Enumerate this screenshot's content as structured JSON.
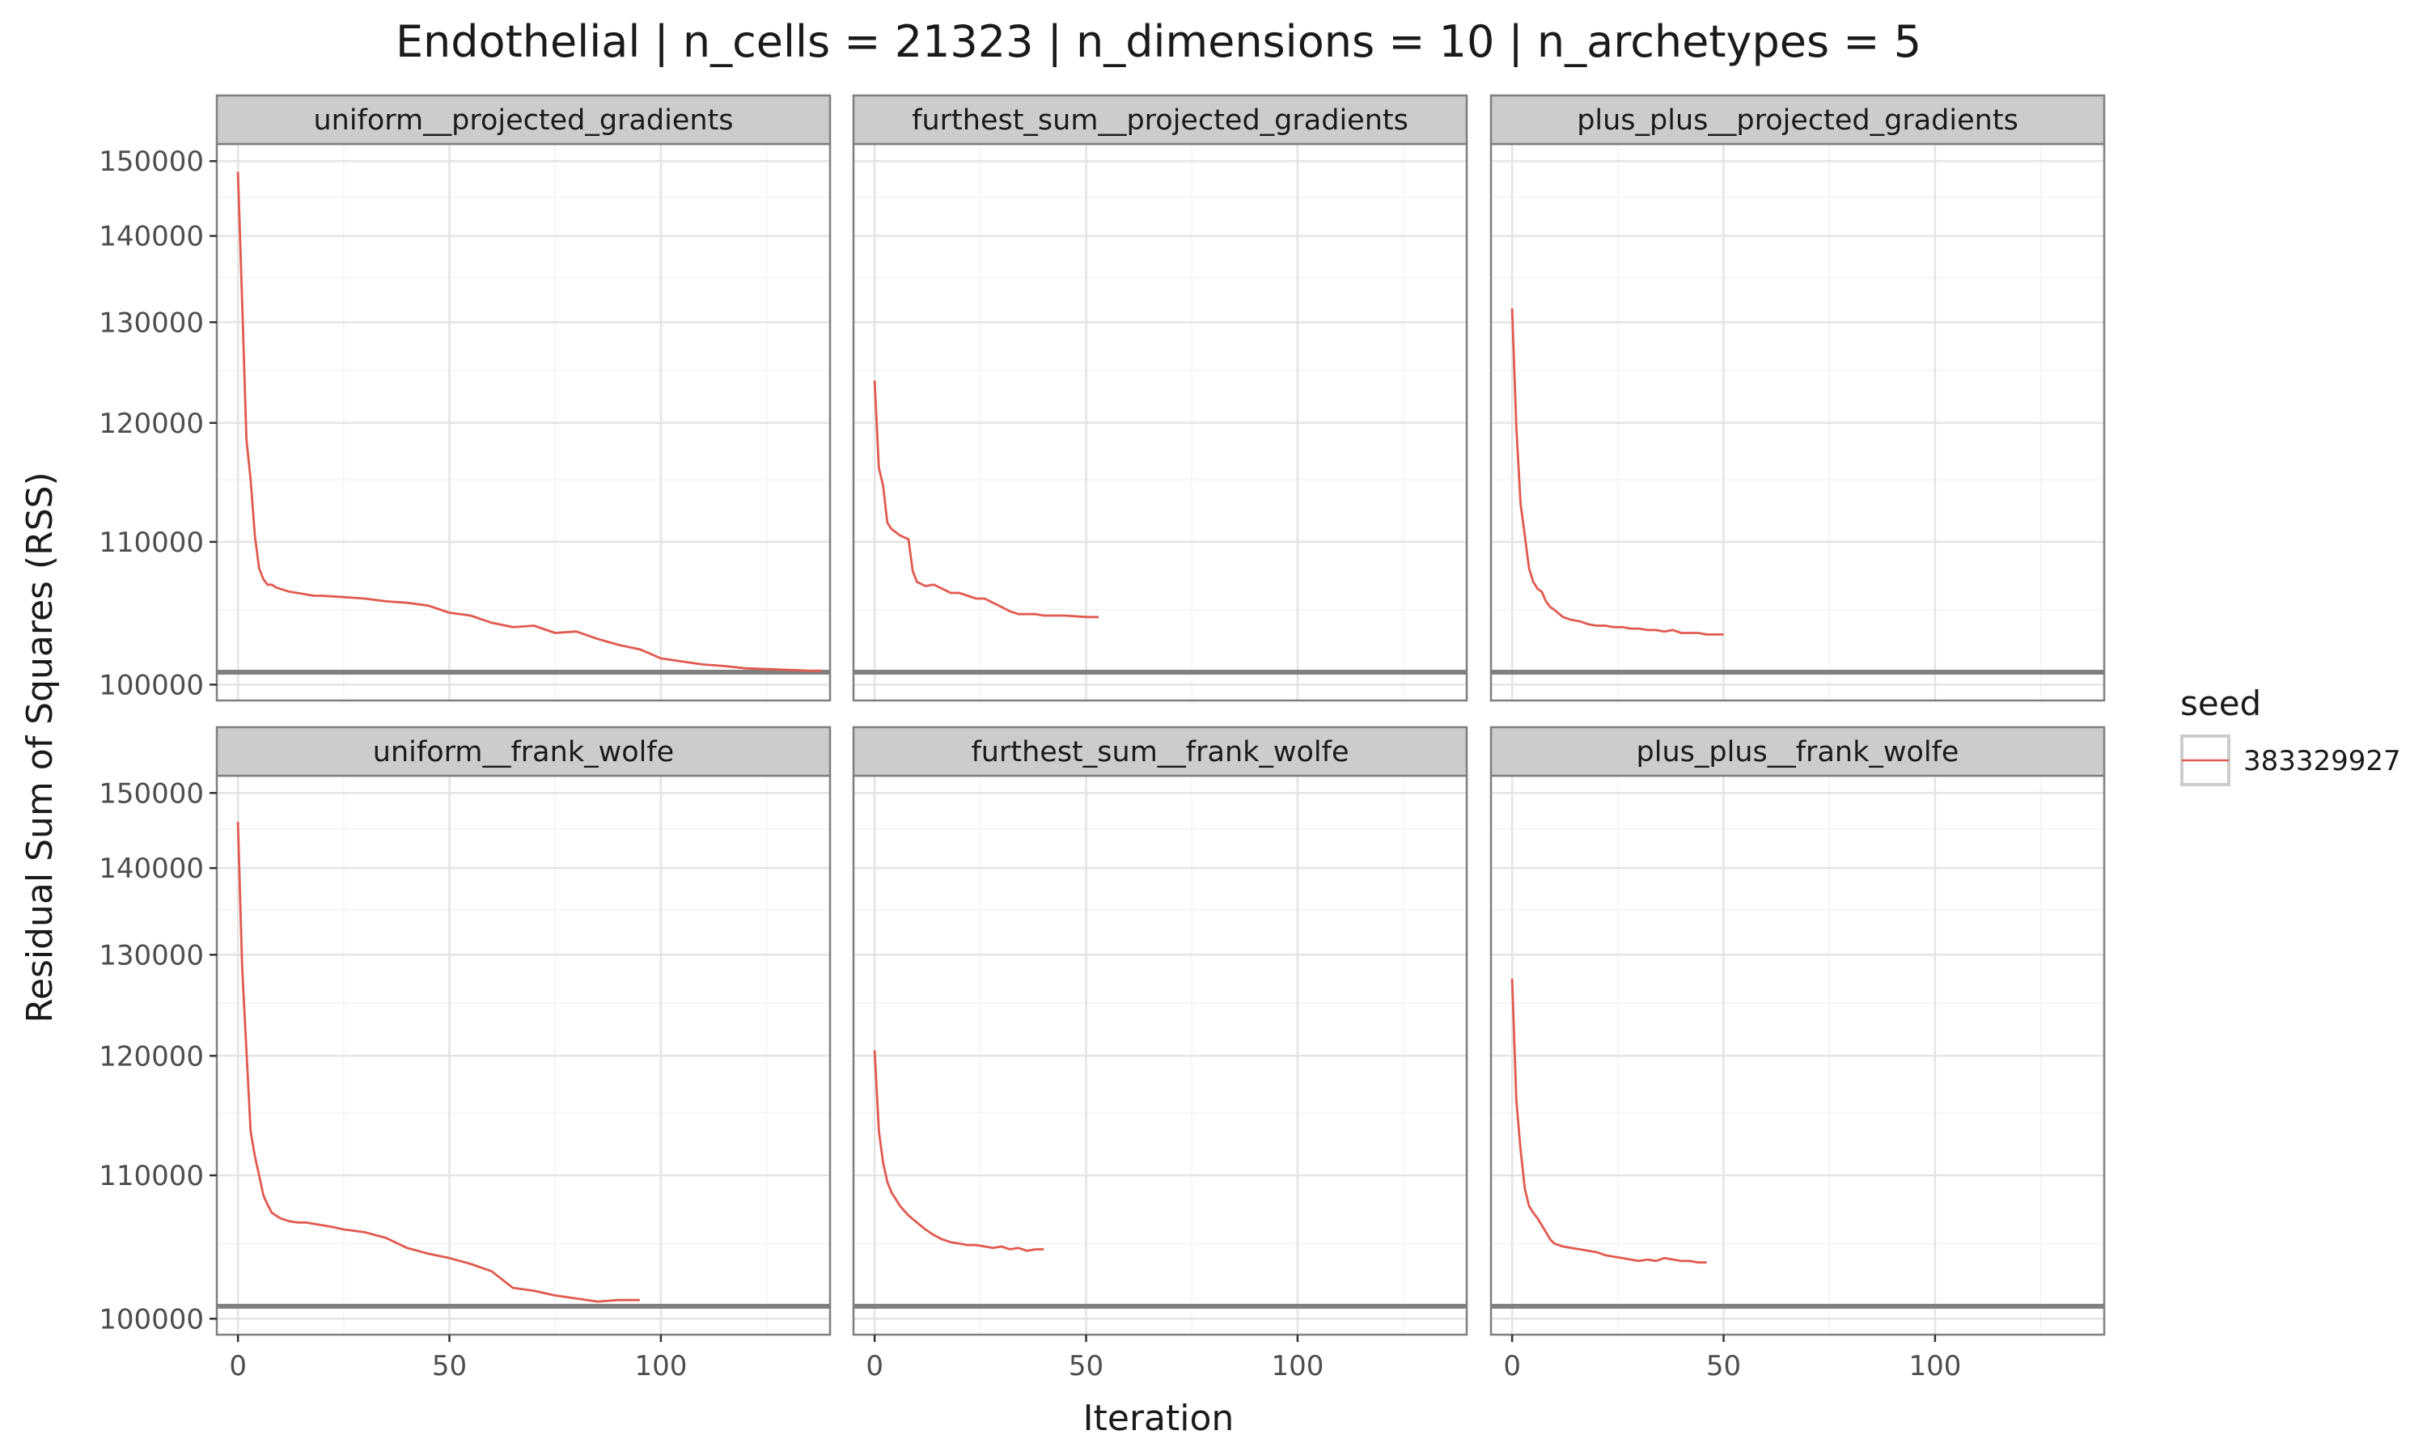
{
  "chart_data": {
    "type": "line",
    "title": "Endothelial | n_cells = 21323 | n_dimensions = 10 | n_archetypes = 5",
    "xlabel": "Iteration",
    "ylabel": "Residual Sum of Squares (RSS)",
    "xlim": [
      -5,
      140
    ],
    "ylim": [
      99000,
      152500
    ],
    "y_scale": "reciprocal",
    "x_ticks": [
      0,
      50,
      100
    ],
    "x_tick_labels": [
      "0",
      "50",
      "100"
    ],
    "y_ticks": [
      100000,
      110000,
      120000,
      130000,
      140000,
      150000
    ],
    "y_tick_labels": [
      "100000",
      "110000",
      "120000",
      "130000",
      "140000",
      "150000"
    ],
    "grid": true,
    "reference_line_y": 100800,
    "legend": {
      "title": "seed",
      "position": "right",
      "entries": [
        "383329927"
      ]
    },
    "colors": {
      "series": "#e05a4f",
      "strip_bg": "#cccccc",
      "panel_border": "#7f7f7f",
      "hline": "#808080",
      "grid_major": "#e4e4e4",
      "grid_minor": "#f3f3f3"
    },
    "panels": [
      {
        "label": "uniform__projected_gradients",
        "series": [
          {
            "name": "383329927",
            "x": [
              0,
              1,
              2,
              3,
              4,
              5,
              6,
              7,
              8,
              9,
              10,
              12,
              14,
              16,
              18,
              20,
              25,
              30,
              35,
              40,
              45,
              50,
              55,
              60,
              65,
              70,
              75,
              80,
              85,
              90,
              95,
              100,
              105,
              110,
              115,
              120,
              125,
              130,
              135,
              138
            ],
            "y": [
              148500,
              132000,
              118500,
              115000,
              110500,
              108000,
              107200,
              106800,
              106800,
              106600,
              106500,
              106300,
              106200,
              106100,
              106000,
              106000,
              105900,
              105800,
              105600,
              105500,
              105300,
              104800,
              104600,
              104100,
              103800,
              103900,
              103400,
              103500,
              103000,
              102600,
              102300,
              101700,
              101500,
              101300,
              101200,
              101050,
              101000,
              100950,
              100900,
              100900
            ]
          }
        ]
      },
      {
        "label": "furthest_sum__projected_gradients",
        "series": [
          {
            "name": "383329927",
            "x": [
              0,
              1,
              2,
              3,
              4,
              6,
              8,
              9,
              10,
              12,
              14,
              16,
              18,
              20,
              22,
              24,
              26,
              28,
              30,
              32,
              34,
              36,
              38,
              40,
              45,
              50,
              53
            ],
            "y": [
              124000,
              116000,
              114500,
              111500,
              111000,
              110500,
              110200,
              107800,
              107000,
              106700,
              106800,
              106500,
              106200,
              106200,
              106000,
              105800,
              105800,
              105500,
              105200,
              104900,
              104700,
              104700,
              104700,
              104600,
              104600,
              104500,
              104500
            ]
          }
        ]
      },
      {
        "label": "plus_plus__projected_gradients",
        "series": [
          {
            "name": "383329927",
            "x": [
              0,
              1,
              2,
              3,
              4,
              5,
              6,
              7,
              8,
              9,
              10,
              12,
              14,
              16,
              18,
              20,
              22,
              24,
              26,
              28,
              30,
              32,
              34,
              36,
              38,
              40,
              42,
              44,
              46,
              48,
              50
            ],
            "y": [
              131500,
              119500,
              113000,
              110500,
              108000,
              107000,
              106500,
              106300,
              105600,
              105200,
              105000,
              104500,
              104300,
              104200,
              104000,
              103900,
              103900,
              103800,
              103800,
              103700,
              103700,
              103600,
              103600,
              103500,
              103600,
              103400,
              103400,
              103400,
              103300,
              103300,
              103300
            ]
          }
        ]
      },
      {
        "label": "uniform__frank_wolfe",
        "series": [
          {
            "name": "383329927",
            "x": [
              0,
              1,
              2,
              3,
              4,
              5,
              6,
              7,
              8,
              9,
              10,
              12,
              14,
              16,
              18,
              20,
              22,
              25,
              30,
              35,
              40,
              45,
              50,
              55,
              60,
              65,
              70,
              75,
              80,
              85,
              90,
              95
            ],
            "y": [
              146000,
              128500,
              120500,
              113500,
              111500,
              110000,
              108500,
              107800,
              107200,
              107000,
              106800,
              106600,
              106500,
              106500,
              106400,
              106300,
              106200,
              106000,
              105800,
              105400,
              104700,
              104300,
              104000,
              103600,
              103100,
              102000,
              101800,
              101500,
              101300,
              101100,
              101200,
              101200
            ]
          }
        ]
      },
      {
        "label": "furthest_sum__frank_wolfe",
        "series": [
          {
            "name": "383329927",
            "x": [
              0,
              1,
              2,
              3,
              4,
              5,
              6,
              8,
              10,
              12,
              14,
              16,
              18,
              20,
              22,
              24,
              26,
              28,
              30,
              32,
              34,
              36,
              38,
              40
            ],
            "y": [
              120500,
              113500,
              111000,
              109500,
              108700,
              108200,
              107700,
              107000,
              106500,
              106000,
              105600,
              105300,
              105100,
              105000,
              104900,
              104900,
              104800,
              104700,
              104800,
              104600,
              104700,
              104500,
              104600,
              104600
            ]
          }
        ]
      },
      {
        "label": "plus_plus__frank_wolfe",
        "series": [
          {
            "name": "383329927",
            "x": [
              0,
              1,
              2,
              3,
              4,
              5,
              6,
              7,
              8,
              9,
              10,
              12,
              14,
              16,
              18,
              20,
              22,
              24,
              26,
              28,
              30,
              32,
              34,
              36,
              38,
              40,
              42,
              44,
              46
            ],
            "y": [
              127500,
              116000,
              112000,
              109000,
              107700,
              107200,
              106800,
              106300,
              105800,
              105300,
              105000,
              104800,
              104700,
              104600,
              104500,
              104400,
              104200,
              104100,
              104000,
              103900,
              103800,
              103900,
              103800,
              104000,
              103900,
              103800,
              103800,
              103700,
              103700
            ]
          }
        ]
      }
    ]
  }
}
